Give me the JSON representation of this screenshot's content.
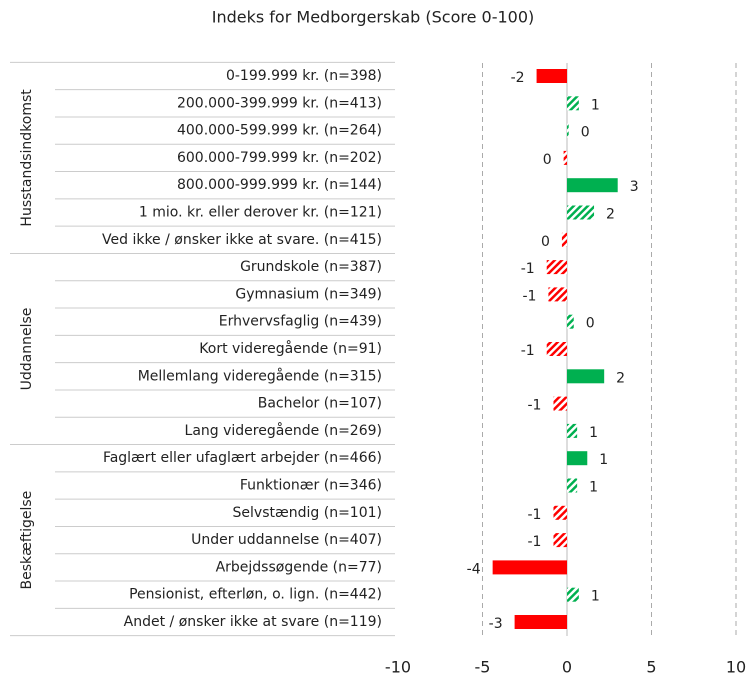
{
  "chart_data": {
    "type": "bar",
    "orientation": "horizontal",
    "title": "Indeks for Medborgerskab (Score 0-100)",
    "groups": [
      {
        "label": "Husstandsindkomst",
        "categories": [
          "0-199.999 kr. (n=398)",
          "200.000-399.999 kr. (n=413)",
          "400.000-599.999 kr. (n=264)",
          "600.000-799.999 kr. (n=202)",
          "800.000-999.999 kr. (n=144)",
          "1 mio. kr. eller derover kr. (n=121)",
          "Ved ikke / ønsker ikke at svare. (n=415)"
        ],
        "values": [
          -1.8,
          0.7,
          0.1,
          -0.2,
          3.0,
          1.6,
          -0.3
        ],
        "value_labels": [
          "-2",
          "1",
          "0",
          "0",
          "3",
          "2",
          "0"
        ],
        "hatched": [
          false,
          true,
          true,
          true,
          false,
          true,
          true
        ]
      },
      {
        "label": "Uddannelse",
        "categories": [
          "Grundskole (n=387)",
          "Gymnasium (n=349)",
          "Erhvervsfaglig (n=439)",
          "Kort videregående (n=91)",
          "Mellemlang videregående (n=315)",
          "Bachelor (n=107)",
          "Lang videregående (n=269)"
        ],
        "values": [
          -1.2,
          -1.1,
          0.4,
          -1.2,
          2.2,
          -0.8,
          0.6
        ],
        "value_labels": [
          "-1",
          "-1",
          "0",
          "-1",
          "2",
          "-1",
          "1"
        ],
        "hatched": [
          true,
          true,
          true,
          true,
          false,
          true,
          true
        ]
      },
      {
        "label": "Beskæftigelse",
        "categories": [
          "Faglært eller ufaglært arbejder (n=466)",
          "Funktionær (n=346)",
          "Selvstændig (n=101)",
          "Under uddannelse (n=407)",
          "Arbejdssøgende (n=77)",
          "Pensionist, efterløn, o. lign. (n=442)",
          "Andet / ønsker ikke at svare (n=119)"
        ],
        "values": [
          1.2,
          0.6,
          -0.8,
          -0.8,
          -4.4,
          0.7,
          -3.1
        ],
        "value_labels": [
          "1",
          "1",
          "-1",
          "-1",
          "-4",
          "1",
          "-3"
        ],
        "hatched": [
          false,
          true,
          true,
          true,
          false,
          true,
          false
        ]
      }
    ],
    "positive_color": "#00b050",
    "negative_color": "#ff0000",
    "xlim": [
      -10,
      10
    ],
    "xticks": [
      -10,
      -5,
      0,
      5,
      10
    ],
    "grid": true
  }
}
